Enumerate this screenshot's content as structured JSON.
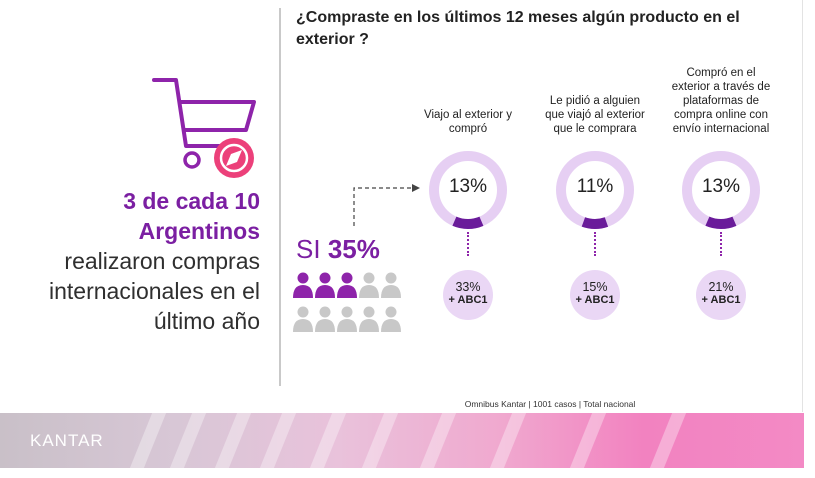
{
  "title": "¿Compraste en los últimos 12 meses algún producto en el exterior ?",
  "headline": {
    "highlight_line1": "3 de cada 10",
    "highlight_line2": "Argentinos",
    "line3": "realizaron compras",
    "line4": "internacionales en el",
    "line5": "último año"
  },
  "si": {
    "label": "SI",
    "value": "35%"
  },
  "people_icons": {
    "total": 10,
    "highlighted": 3,
    "highlight_color": "#8e24aa",
    "base_color": "#c8c8c8"
  },
  "colors": {
    "accent": "#7b1fa2",
    "ring": "#e6cff3",
    "ring_segment": "#6a1b9a",
    "sub_circle": "#ead7f5"
  },
  "source": "Omnibus Kantar | 1001 casos | Total nacional",
  "brand": "KANTAR",
  "chart_data": {
    "type": "pie",
    "categories": [
      "Viajo al exterior y compró",
      "Le pidió a alguien que viajó al exterior que le comprara",
      "Compró en el exterior a través de plataformas de compra online con envío internacional"
    ],
    "label_lines": [
      [
        "Viajo al exterior y",
        "compró"
      ],
      [
        "Le pidió a alguien",
        "que viajó al exterior",
        "que le comprara"
      ],
      [
        "Compró en el",
        "exterior a través de",
        "plataformas de",
        "compra online con",
        "envío internacional"
      ]
    ],
    "values": [
      13,
      11,
      13
    ],
    "value_labels": [
      "13%",
      "11%",
      "13%"
    ],
    "abc1_values": [
      33,
      15,
      21
    ],
    "abc1_labels": [
      "33%",
      "15%",
      "21%"
    ],
    "abc1_suffix": "+ ABC1"
  }
}
